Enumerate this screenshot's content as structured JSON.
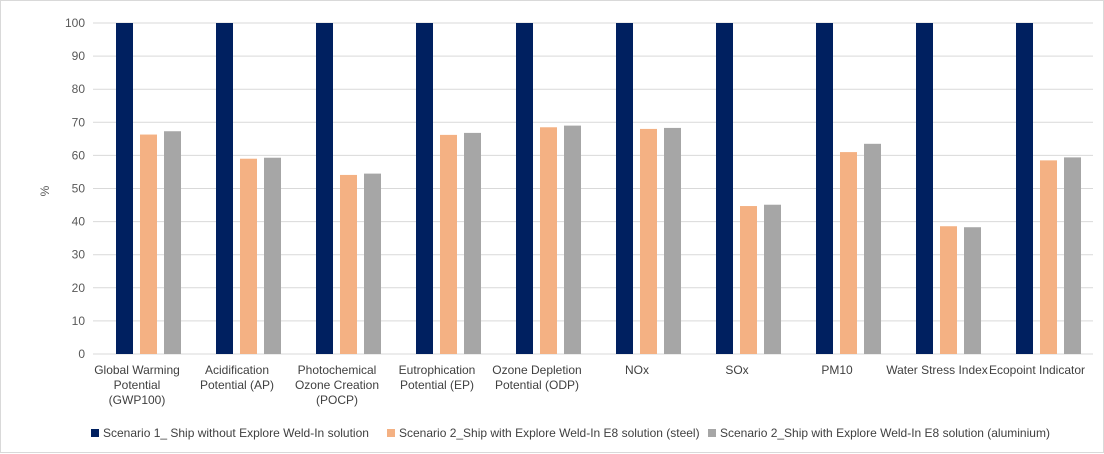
{
  "chart_data": {
    "type": "bar",
    "ylabel": "%",
    "ylim": [
      0,
      100
    ],
    "yticks": [
      0,
      10,
      20,
      30,
      40,
      50,
      60,
      70,
      80,
      90,
      100
    ],
    "grid": true,
    "legend_position": "bottom",
    "categories": [
      [
        "Global Warming",
        "Potential",
        "(GWP100)"
      ],
      [
        "Acidification",
        "Potential (AP)"
      ],
      [
        "Photochemical",
        "Ozone Creation",
        "(POCP)"
      ],
      [
        "Eutrophication",
        "Potential (EP)"
      ],
      [
        "Ozone Depletion",
        "Potential (ODP)"
      ],
      [
        "NOx"
      ],
      [
        "SOx"
      ],
      [
        "PM10"
      ],
      [
        "Water Stress Index"
      ],
      [
        "Ecopoint Indicator"
      ]
    ],
    "series": [
      {
        "name": "Scenario 1_ Ship without Explore Weld-In solution",
        "color": "#002060",
        "values": [
          100,
          100,
          100,
          100,
          100,
          100,
          100,
          100,
          100,
          100
        ]
      },
      {
        "name": "Scenario 2_Ship with Explore Weld-In E8 solution (steel)",
        "color": "#F4B183",
        "values": [
          66.3,
          59.0,
          54.1,
          66.2,
          68.5,
          68.0,
          44.7,
          61.0,
          38.6,
          58.5
        ]
      },
      {
        "name": "Scenario 2_Ship with Explore Weld-In E8 solution (aluminium)",
        "color": "#A6A6A6",
        "values": [
          67.3,
          59.3,
          54.5,
          66.8,
          69.0,
          68.3,
          45.1,
          63.5,
          38.3,
          59.4
        ]
      }
    ]
  }
}
